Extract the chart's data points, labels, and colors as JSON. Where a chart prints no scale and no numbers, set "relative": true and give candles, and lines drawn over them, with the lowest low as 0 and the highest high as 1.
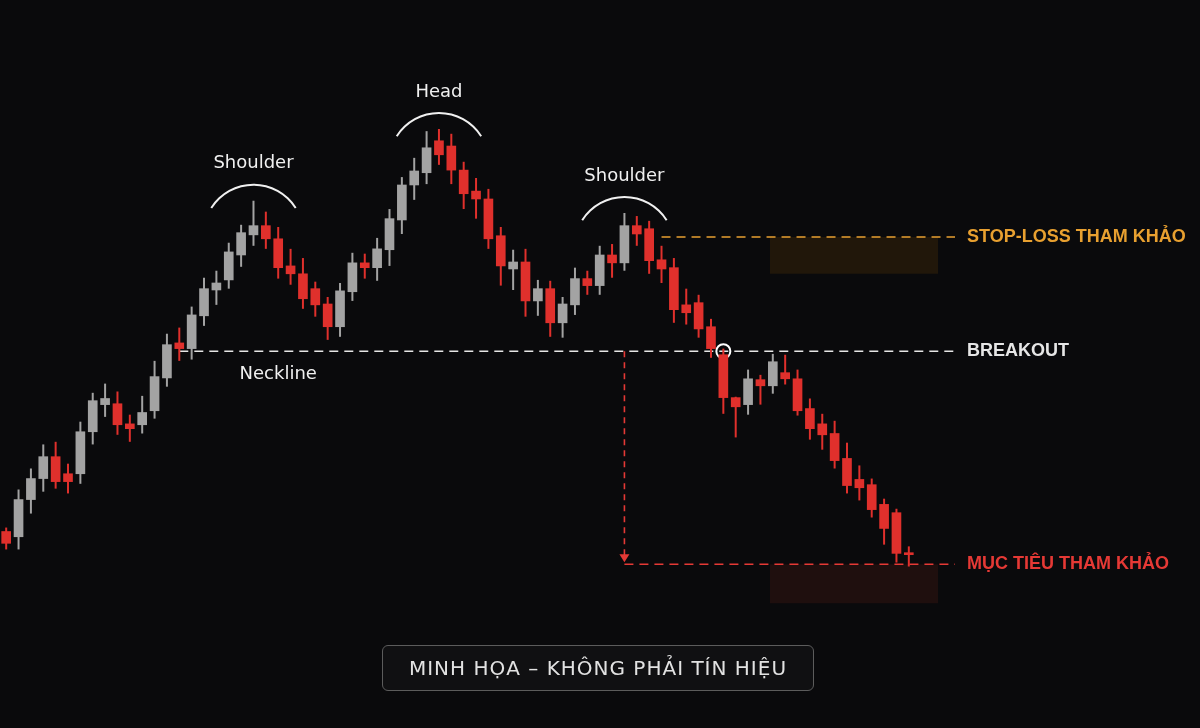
{
  "chart_data": {
    "type": "candlestick",
    "relative": true,
    "categories": [
      null,
      null,
      null,
      null,
      null,
      null,
      null,
      null,
      null,
      null,
      null,
      null,
      null,
      null,
      null,
      null,
      null,
      null,
      null,
      null,
      null,
      null,
      null,
      null,
      null,
      null,
      null,
      null,
      null,
      null,
      null,
      null,
      null,
      null,
      null,
      null,
      null,
      null,
      null,
      null,
      null,
      null,
      null,
      null,
      null,
      null,
      null,
      null,
      null,
      null,
      null,
      null,
      null,
      null,
      null,
      null,
      null,
      null,
      null,
      null,
      null,
      null,
      null,
      null,
      null,
      null,
      null,
      null,
      null,
      null,
      null,
      null,
      null,
      null
    ],
    "ohlc": [
      [
        0.08,
        0.089,
        0.039,
        0.053
      ],
      [
        0.068,
        0.176,
        0.039,
        0.153
      ],
      [
        0.153,
        0.224,
        0.121,
        0.201
      ],
      [
        0.201,
        0.279,
        0.171,
        0.251
      ],
      [
        0.251,
        0.285,
        0.178,
        0.194
      ],
      [
        0.212,
        0.235,
        0.167,
        0.194
      ],
      [
        0.212,
        0.331,
        0.189,
        0.308
      ],
      [
        0.308,
        0.397,
        0.279,
        0.379
      ],
      [
        0.37,
        0.418,
        0.342,
        0.384
      ],
      [
        0.372,
        0.4,
        0.301,
        0.324
      ],
      [
        0.326,
        0.347,
        0.285,
        0.315
      ],
      [
        0.324,
        0.39,
        0.304,
        0.352
      ],
      [
        0.356,
        0.47,
        0.338,
        0.434
      ],
      [
        0.431,
        0.532,
        0.411,
        0.507
      ],
      [
        0.511,
        0.546,
        0.47,
        0.498
      ],
      [
        0.498,
        0.594,
        0.473,
        0.575
      ],
      [
        0.573,
        0.66,
        0.55,
        0.635
      ],
      [
        0.632,
        0.676,
        0.598,
        0.648
      ],
      [
        0.655,
        0.74,
        0.635,
        0.719
      ],
      [
        0.712,
        0.781,
        0.685,
        0.763
      ],
      [
        0.758,
        0.836,
        0.733,
        0.779
      ],
      [
        0.779,
        0.811,
        0.726,
        0.749
      ],
      [
        0.749,
        0.776,
        0.658,
        0.683
      ],
      [
        0.687,
        0.726,
        0.644,
        0.669
      ],
      [
        0.669,
        0.705,
        0.589,
        0.612
      ],
      [
        0.635,
        0.651,
        0.571,
        0.598
      ],
      [
        0.6,
        0.616,
        0.518,
        0.548
      ],
      [
        0.548,
        0.648,
        0.525,
        0.63
      ],
      [
        0.628,
        0.717,
        0.607,
        0.694
      ],
      [
        0.694,
        0.715,
        0.658,
        0.683
      ],
      [
        0.683,
        0.751,
        0.653,
        0.726
      ],
      [
        0.724,
        0.817,
        0.687,
        0.795
      ],
      [
        0.792,
        0.89,
        0.76,
        0.872
      ],
      [
        0.872,
        0.934,
        0.838,
        0.904
      ],
      [
        0.9,
        0.995,
        0.874,
        0.957
      ],
      [
        0.973,
        1,
        0.918,
        0.941
      ],
      [
        0.961,
        0.989,
        0.874,
        0.906
      ],
      [
        0.906,
        0.925,
        0.817,
        0.852
      ],
      [
        0.858,
        0.888,
        0.795,
        0.84
      ],
      [
        0.84,
        0.863,
        0.726,
        0.749
      ],
      [
        0.756,
        0.776,
        0.642,
        0.687
      ],
      [
        0.68,
        0.724,
        0.632,
        0.696
      ],
      [
        0.696,
        0.726,
        0.571,
        0.607
      ],
      [
        0.607,
        0.655,
        0.573,
        0.635
      ],
      [
        0.635,
        0.653,
        0.525,
        0.557
      ],
      [
        0.557,
        0.616,
        0.523,
        0.6
      ],
      [
        0.598,
        0.683,
        0.575,
        0.658
      ],
      [
        0.658,
        0.676,
        0.621,
        0.642
      ],
      [
        0.642,
        0.733,
        0.621,
        0.712
      ],
      [
        0.712,
        0.737,
        0.66,
        0.694
      ],
      [
        0.694,
        0.808,
        0.676,
        0.779
      ],
      [
        0.779,
        0.801,
        0.733,
        0.76
      ],
      [
        0.772,
        0.79,
        0.669,
        0.699
      ],
      [
        0.701,
        0.733,
        0.648,
        0.68
      ],
      [
        0.683,
        0.705,
        0.557,
        0.587
      ],
      [
        0.598,
        0.635,
        0.553,
        0.58
      ],
      [
        0.603,
        0.621,
        0.523,
        0.543
      ],
      [
        0.548,
        0.566,
        0.477,
        0.498
      ],
      [
        0.484,
        0.498,
        0.349,
        0.386
      ],
      [
        0.386,
        0.388,
        0.295,
        0.365
      ],
      [
        0.37,
        0.45,
        0.347,
        0.429
      ],
      [
        0.427,
        0.438,
        0.37,
        0.413
      ],
      [
        0.413,
        0.486,
        0.395,
        0.468
      ],
      [
        0.443,
        0.484,
        0.416,
        0.429
      ],
      [
        0.429,
        0.45,
        0.345,
        0.356
      ],
      [
        0.361,
        0.384,
        0.29,
        0.315
      ],
      [
        0.326,
        0.349,
        0.267,
        0.301
      ],
      [
        0.304,
        0.333,
        0.224,
        0.242
      ],
      [
        0.247,
        0.283,
        0.167,
        0.185
      ],
      [
        0.199,
        0.231,
        0.151,
        0.18
      ],
      [
        0.187,
        0.201,
        0.112,
        0.13
      ],
      [
        0.142,
        0.155,
        0.05,
        0.087
      ],
      [
        0.123,
        0.132,
        0.009,
        0.03
      ],
      [
        0.03,
        0.046,
        0,
        0.027
      ]
    ],
    "colors": [
      "#e0302c",
      "#a3a3a3",
      "#a3a3a3",
      "#a3a3a3",
      "#e0302c",
      "#e0302c",
      "#a3a3a3",
      "#a3a3a3",
      "#a3a3a3",
      "#e0302c",
      "#e0302c",
      "#a3a3a3",
      "#a3a3a3",
      "#a3a3a3",
      "#e0302c",
      "#a3a3a3",
      "#a3a3a3",
      "#a3a3a3",
      "#a3a3a3",
      "#a3a3a3",
      "#a3a3a3",
      "#e0302c",
      "#e0302c",
      "#e0302c",
      "#e0302c",
      "#e0302c",
      "#e0302c",
      "#a3a3a3",
      "#a3a3a3",
      "#e0302c",
      "#a3a3a3",
      "#a3a3a3",
      "#a3a3a3",
      "#a3a3a3",
      "#a3a3a3",
      "#e0302c",
      "#e0302c",
      "#e0302c",
      "#e0302c",
      "#e0302c",
      "#e0302c",
      "#a3a3a3",
      "#e0302c",
      "#a3a3a3",
      "#e0302c",
      "#a3a3a3",
      "#a3a3a3",
      "#e0302c",
      "#a3a3a3",
      "#e0302c",
      "#a3a3a3",
      "#e0302c",
      "#e0302c",
      "#e0302c",
      "#e0302c",
      "#e0302c",
      "#e0302c",
      "#e0302c",
      "#e0302c",
      "#e0302c",
      "#a3a3a3",
      "#e0302c",
      "#a3a3a3",
      "#e0302c",
      "#e0302c",
      "#e0302c",
      "#e0302c",
      "#e0302c",
      "#e0302c",
      "#e0302c",
      "#e0302c",
      "#e0302c",
      "#e0302c",
      "#e0302c"
    ],
    "ref_lines": [
      {
        "axis": "y",
        "value": 0.492,
        "label": "BREAKOUT",
        "color": "#e6e6e6",
        "line_style": "dashed"
      },
      {
        "axis": "y",
        "value": 0.753,
        "label": "STOP-LOSS THAM KHẢO",
        "color": "#e8a030",
        "line_style": "dashed"
      },
      {
        "axis": "y",
        "value": 0.005,
        "label": "MỤC TIÊU THAM KHẢO",
        "color": "#e53935",
        "line_style": "dashed"
      }
    ],
    "bands": [
      {
        "axis": "y",
        "from": 0.669,
        "to": 0.753,
        "color": "#21170a"
      },
      {
        "axis": "y",
        "from": -0.084,
        "to": 0.005,
        "color": "#1f0f0e"
      }
    ],
    "annotations": [
      "Shoulder",
      "Head",
      "Shoulder",
      {
        "text": "Neckline",
        "y": 0.492
      },
      "MINH HỌA – KHÔNG PHẢI TÍN HIỆU"
    ],
    "legend": false
  }
}
